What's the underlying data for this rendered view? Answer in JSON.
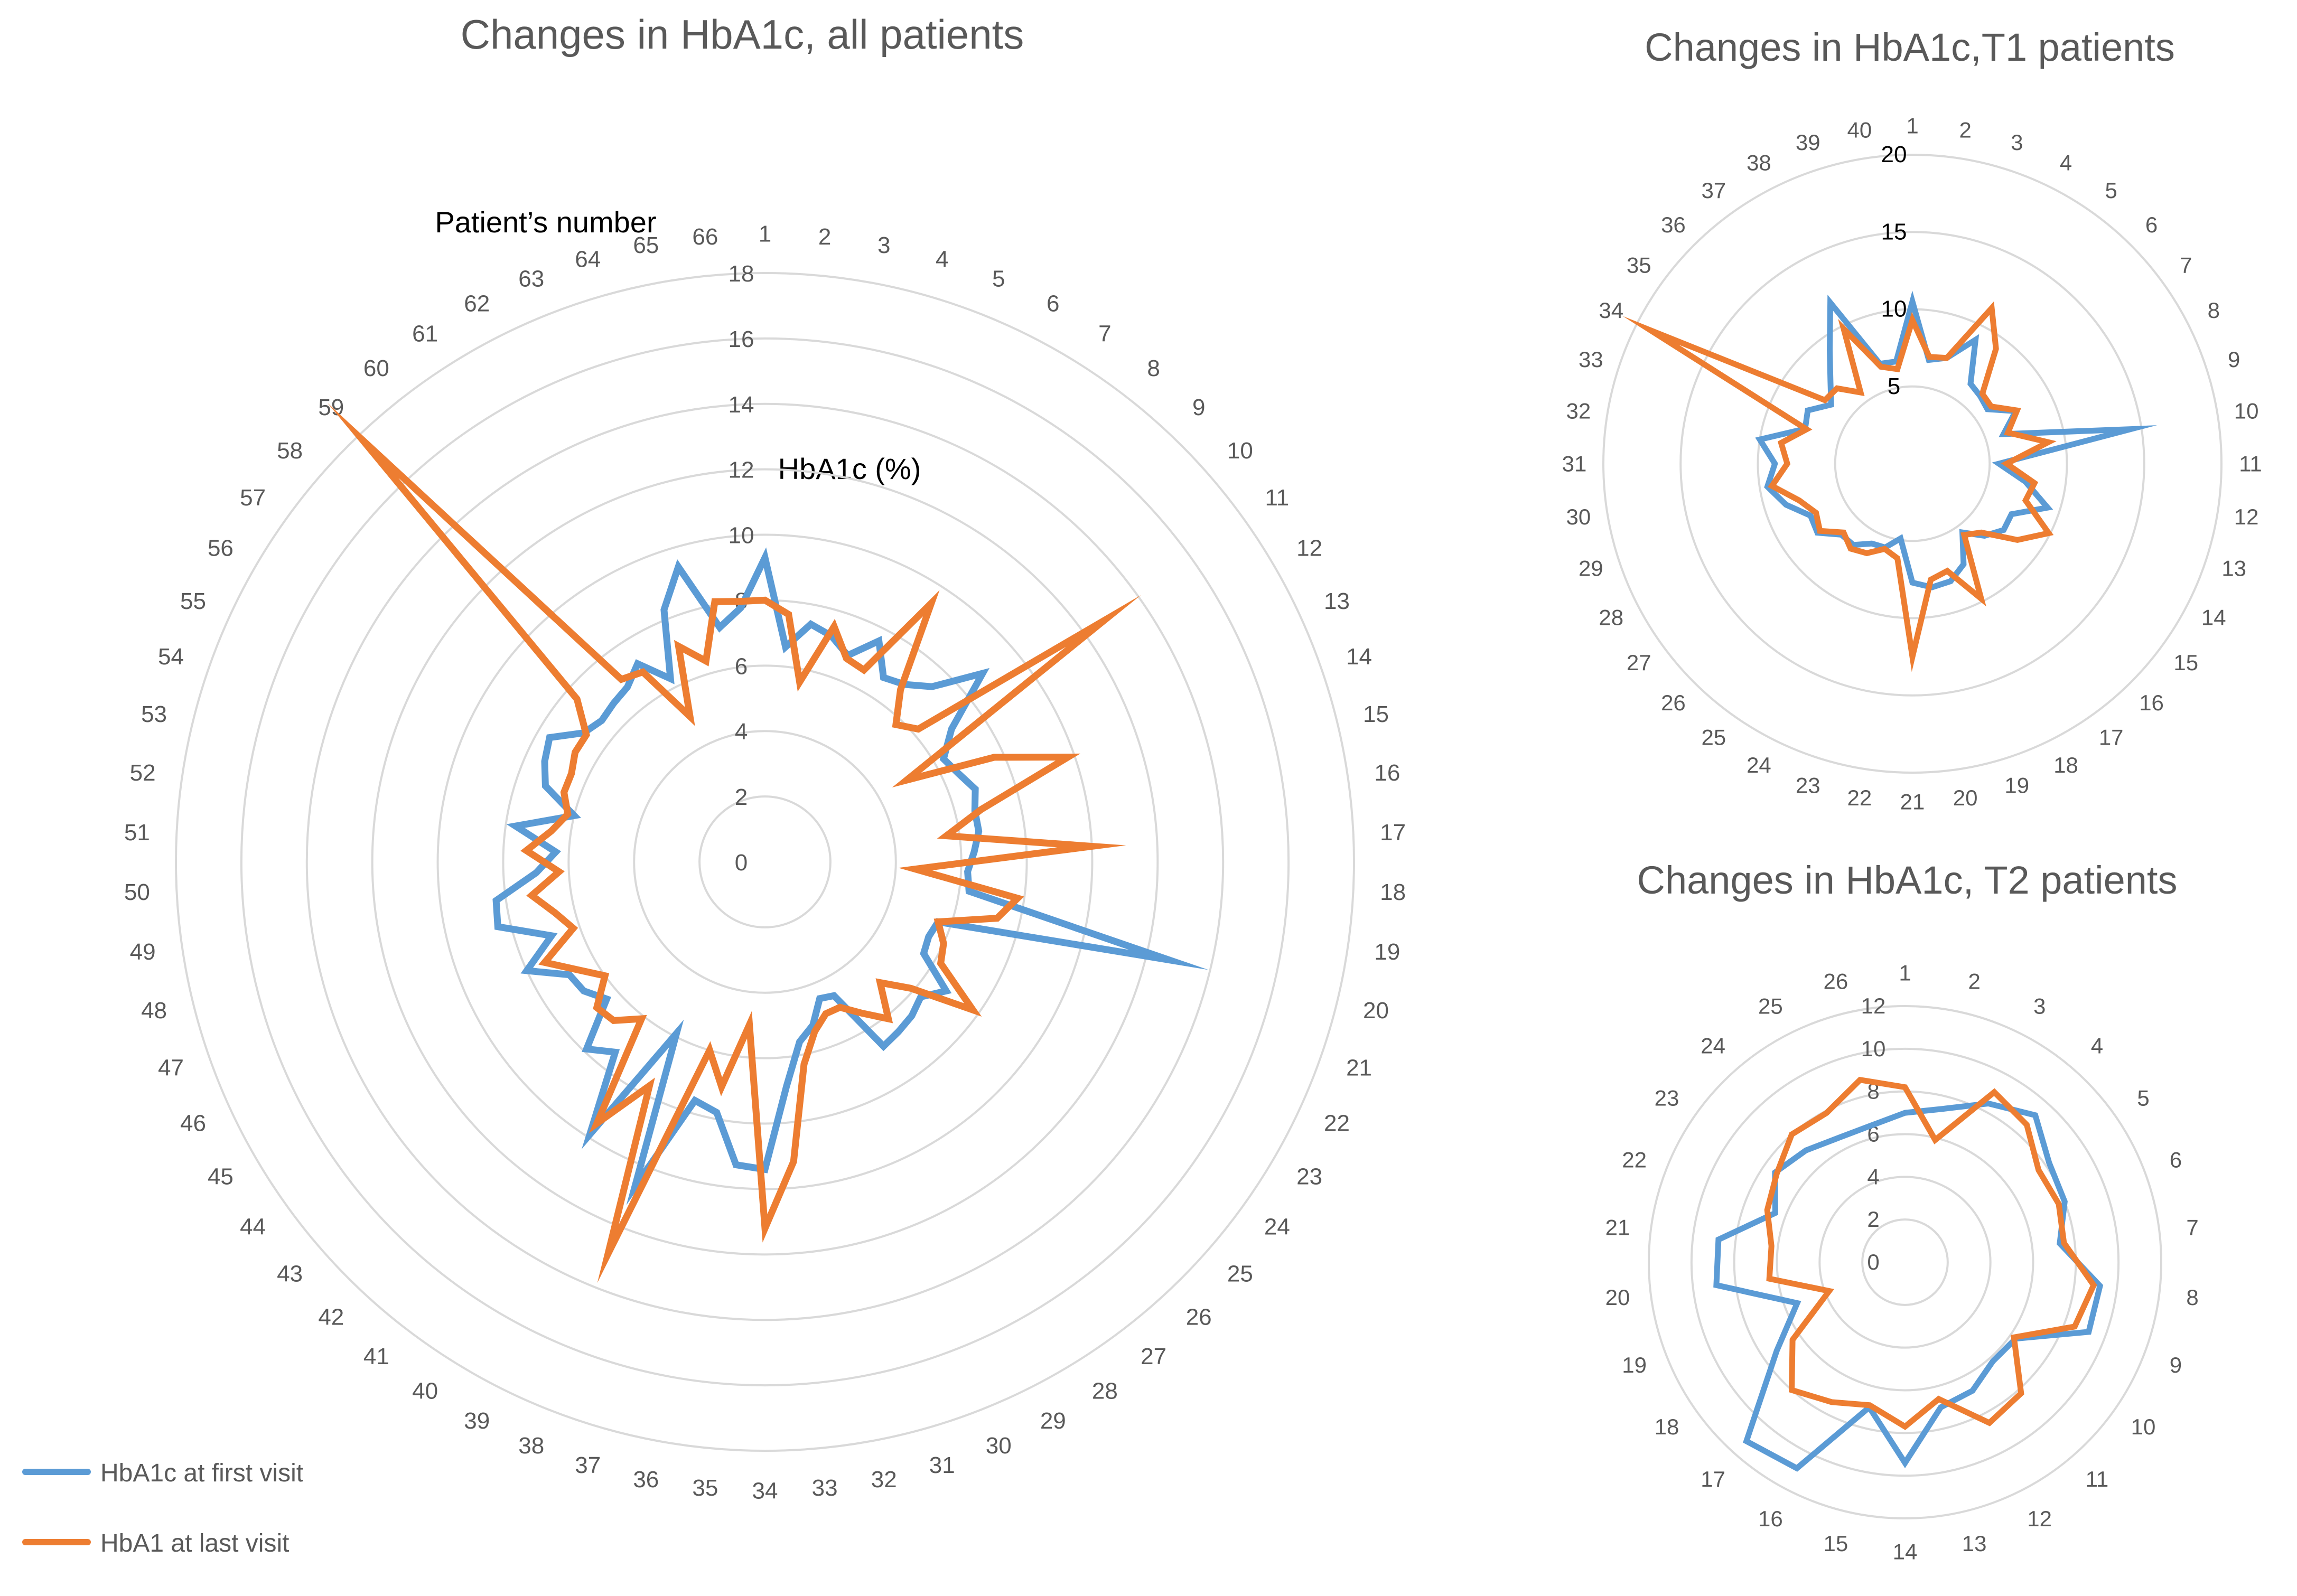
{
  "colors": {
    "first": "#5B9BD5",
    "last": "#ED7D31",
    "grid": "#D9D9D9",
    "text": "#595959",
    "title": "#595959"
  },
  "legend": {
    "first_label": "HbA1c at first visit",
    "last_label": "HbA1 at last visit"
  },
  "chart_data": [
    {
      "type": "radar",
      "title": "Changes in HbA1c, all patients",
      "category_axis_label": "Patient’s number",
      "value_axis_label": "HbA1c (%)",
      "ylim": [
        0,
        18
      ],
      "ticks": [
        0,
        2,
        4,
        6,
        8,
        10,
        12,
        14,
        16,
        18
      ],
      "tick_labels": [
        "0",
        "2",
        "4",
        "6",
        "8",
        "10",
        "12",
        "14",
        "16",
        "18"
      ],
      "categories": [
        "1",
        "2",
        "3",
        "4",
        "5",
        "6",
        "7",
        "8",
        "9",
        "10",
        "11",
        "12",
        "13",
        "14",
        "15",
        "16",
        "17",
        "18",
        "19",
        "20",
        "21",
        "22",
        "23",
        "24",
        "25",
        "26",
        "27",
        "28",
        "29",
        "30",
        "31",
        "32",
        "33",
        "34",
        "35",
        "36",
        "37",
        "38",
        "39",
        "40",
        "41",
        "42",
        "43",
        "44",
        "45",
        "46",
        "47",
        "48",
        "49",
        "50",
        "51",
        "52",
        "53",
        "54",
        "55",
        "56",
        "57",
        "58",
        "59",
        "60",
        "61",
        "62",
        "63",
        "64",
        "65",
        "66"
      ],
      "series": [
        {
          "name": "HbA1c at first visit",
          "values": [
            9.3,
            6.6,
            7.4,
            7.2,
            6.8,
            7.6,
            6.7,
            6.9,
            7.4,
            8.8,
            7.0,
            6.3,
            6.5,
            6.8,
            6.6,
            6.6,
            6.4,
            6.2,
            6.3,
            12.7,
            5.6,
            5.5,
            5.6,
            6.8,
            6.3,
            6.5,
            6.6,
            6.7,
            4.6,
            4.5,
            5.2,
            5.6,
            6.9,
            9.4,
            9.3,
            7.8,
            7.6,
            10.7,
            5.9,
            9.9,
            7.4,
            7.9,
            6.4,
            6.8,
            6.9,
            8.0,
            6.9,
            8.4,
            8.3,
            7.0,
            6.4,
            7.7,
            6.0,
            7.1,
            7.4,
            7.6,
            6.8,
            6.6,
            6.7,
            6.8,
            7.2,
            6.3,
            8.3,
            9.4,
            7.3,
            7.8
          ]
        },
        {
          "name": "HbA1 at last visit",
          "values": [
            8.0,
            7.6,
            5.6,
            7.5,
            6.7,
            6.6,
            9.4,
            6.7,
            5.8,
            6.2,
            12.7,
            5.0,
            7.7,
            9.8,
            6.8,
            5.6,
            10.0,
            4.6,
            7.8,
            7.3,
            5.6,
            6.0,
            6.2,
            7.8,
            5.9,
            5.1,
            6.1,
            5.5,
            5.0,
            5.0,
            5.4,
            6.3,
            9.2,
            11.2,
            5.0,
            7.0,
            6.0,
            12.9,
            7.7,
            9.5,
            6.1,
            6.7,
            6.8,
            6.0,
            6.6,
            7.4,
            6.2,
            6.6,
            7.2,
            6.3,
            7.3,
            6.6,
            6.2,
            6.5,
            6.5,
            6.7,
            6.7,
            7.6,
            17.8,
            7.1,
            6.9,
            5.0,
            7.1,
            6.4,
            8.1,
            8.0
          ]
        }
      ]
    },
    {
      "type": "radar",
      "title": "Changes in HbA1c,T1 patients",
      "ylim": [
        0,
        20
      ],
      "ticks": [
        5,
        10,
        15,
        20
      ],
      "tick_labels": [
        "5",
        "10",
        "15",
        "20"
      ],
      "categories": [
        "1",
        "2",
        "3",
        "4",
        "5",
        "6",
        "7",
        "8",
        "9",
        "10",
        "11",
        "12",
        "13",
        "14",
        "15",
        "16",
        "17",
        "18",
        "19",
        "20",
        "21",
        "22",
        "23",
        "24",
        "25",
        "26",
        "27",
        "28",
        "29",
        "30",
        "31",
        "32",
        "33",
        "34",
        "35",
        "36",
        "37",
        "38",
        "39",
        "40"
      ],
      "series": [
        {
          "name": "HbA1c at first visit",
          "values": [
            10.5,
            6.8,
            7.2,
            9.0,
            6.4,
            6.2,
            6.0,
            7.5,
            6.2,
            14.3,
            5.6,
            7.4,
            9.2,
            7.2,
            7.3,
            6.6,
            5.5,
            7.3,
            8.0,
            8.1,
            7.7,
            4.9,
            5.7,
            5.8,
            6.5,
            6.5,
            7.6,
            7.4,
            8.6,
            9.5,
            8.9,
            10.0,
            7.3,
            7.6,
            6.5,
            7.5,
            9.1,
            11.7,
            6.8,
            6.7
          ]
        },
        {
          "name": "HbA1 at last visit",
          "values": [
            9.3,
            7.0,
            7.2,
            11.3,
            9.2,
            6.4,
            6.3,
            7.6,
            6.5,
            8.9,
            6.1,
            8.0,
            7.7,
            9.9,
            8.4,
            6.3,
            5.7,
            9.8,
            7.3,
            7.6,
            12.5,
            6.2,
            5.8,
            6.5,
            6.8,
            6.3,
            7.4,
            7.0,
            7.7,
            9.2,
            8.1,
            8.6,
            7.2,
            19.0,
            7.0,
            6.9,
            5.7,
            9.8,
            6.6,
            6.2
          ]
        }
      ]
    },
    {
      "type": "radar",
      "title": "Changes in HbA1c, T2 patients",
      "ylim": [
        0,
        12
      ],
      "ticks": [
        0,
        2,
        4,
        6,
        8,
        10,
        12
      ],
      "tick_labels": [
        "0",
        "2",
        "4",
        "6",
        "8",
        "10",
        "12"
      ],
      "categories": [
        "1",
        "2",
        "3",
        "4",
        "5",
        "6",
        "7",
        "8",
        "9",
        "10",
        "11",
        "12",
        "13",
        "14",
        "15",
        "16",
        "17",
        "18",
        "19",
        "20",
        "21",
        "22",
        "23",
        "24",
        "25",
        "26"
      ],
      "series": [
        {
          "name": "HbA1c at first visit",
          "values": [
            7.0,
            7.4,
            8.4,
            9.2,
            8.2,
            8.0,
            7.3,
            9.2,
            9.2,
            6.3,
            6.2,
            6.8,
            7.0,
            9.4,
            7.0,
            10.9,
            11.2,
            7.3,
            5.4,
            8.9,
            8.8,
            6.5,
            7.4,
            7.0,
            6.6,
            6.6
          ]
        },
        {
          "name": "HbA1 at last visit",
          "values": [
            8.2,
            5.9,
            9.0,
            8.6,
            7.6,
            7.7,
            7.5,
            8.9,
            8.5,
            6.2,
            8.2,
            8.5,
            6.6,
            7.7,
            6.9,
            7.4,
            8.0,
            6.4,
            3.8,
            6.4,
            6.3,
            6.9,
            7.3,
            8.0,
            7.9,
            8.8
          ]
        }
      ]
    }
  ]
}
